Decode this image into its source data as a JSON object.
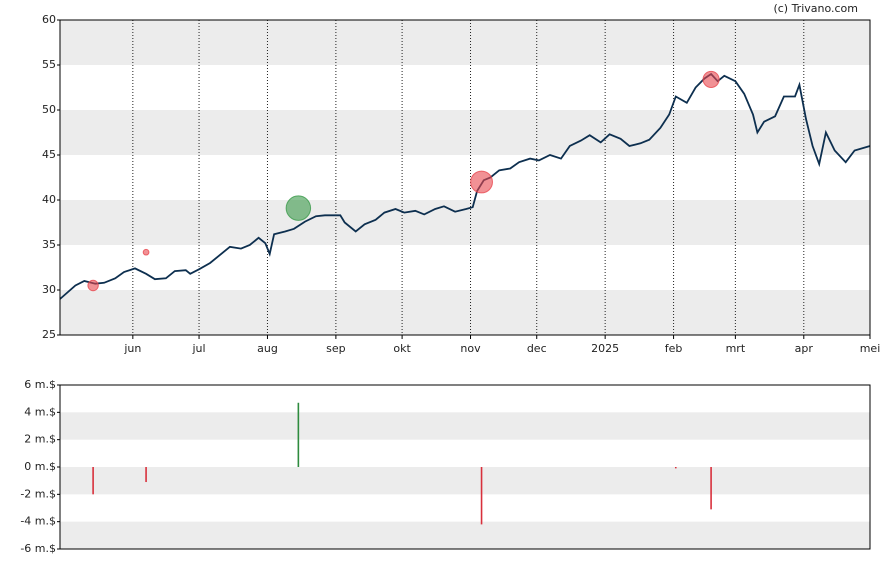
{
  "chart_data": [
    {
      "type": "line",
      "source": "(c) Trivano.com",
      "xlim": [
        0,
        367
      ],
      "xticks": [
        {
          "value": 33,
          "label": "jun"
        },
        {
          "value": 63,
          "label": "jul"
        },
        {
          "value": 94,
          "label": "aug"
        },
        {
          "value": 125,
          "label": "sep"
        },
        {
          "value": 155,
          "label": "okt"
        },
        {
          "value": 186,
          "label": "nov"
        },
        {
          "value": 216,
          "label": "dec"
        },
        {
          "value": 247,
          "label": "2025"
        },
        {
          "value": 278,
          "label": "feb"
        },
        {
          "value": 306,
          "label": "mrt"
        },
        {
          "value": 337,
          "label": "apr"
        },
        {
          "value": 367,
          "label": "mei"
        }
      ],
      "ylim": [
        25,
        60
      ],
      "yticks": [
        25,
        30,
        35,
        40,
        45,
        50,
        55,
        60
      ],
      "grid": "x",
      "line": {
        "color": "#0d2f4f",
        "x": [
          0,
          7,
          11,
          16,
          20,
          25,
          29,
          34,
          39,
          43,
          48,
          52,
          57,
          59,
          63,
          68,
          72,
          77,
          82,
          86,
          90,
          93,
          95,
          97,
          102,
          106,
          111,
          116,
          120,
          127,
          129,
          134,
          138,
          143,
          147,
          152,
          156,
          161,
          165,
          170,
          174,
          179,
          184,
          187,
          189,
          192,
          195,
          199,
          204,
          208,
          213,
          217,
          222,
          227,
          231,
          236,
          240,
          245,
          249,
          254,
          258,
          263,
          267,
          272,
          276,
          279,
          284,
          288,
          292,
          295,
          298,
          301,
          306,
          310,
          314,
          316,
          319,
          324,
          328,
          333,
          335,
          338,
          341,
          344,
          347,
          351,
          356,
          360,
          367
        ],
        "values": [
          29,
          30.5,
          31,
          30.7,
          30.8,
          31.3,
          32,
          32.4,
          31.8,
          31.2,
          31.3,
          32.1,
          32.2,
          31.8,
          32.3,
          33,
          33.8,
          34.8,
          34.6,
          35,
          35.8,
          35.2,
          34,
          36.2,
          36.5,
          36.8,
          37.6,
          38.2,
          38.3,
          38.3,
          37.5,
          36.5,
          37.3,
          37.8,
          38.6,
          39,
          38.6,
          38.8,
          38.4,
          39,
          39.3,
          38.7,
          39,
          39.2,
          41,
          42.2,
          42.5,
          43.3,
          43.5,
          44.2,
          44.6,
          44.4,
          45,
          44.6,
          46,
          46.6,
          47.2,
          46.4,
          47.3,
          46.8,
          46,
          46.3,
          46.7,
          48,
          49.5,
          51.5,
          50.8,
          52.5,
          53.5,
          54,
          53.2,
          53.8,
          53.2,
          51.8,
          49.5,
          47.5,
          48.7,
          49.3,
          51.5,
          51.5,
          52.8,
          49,
          46,
          44,
          47.5,
          45.5,
          44.2,
          45.5,
          46
        ]
      },
      "bubbles": {
        "x": [
          15,
          39,
          108,
          191,
          295
        ],
        "values": [
          30.5,
          34.2,
          39.1,
          42,
          53.4
        ],
        "sizes": [
          2,
          1.1,
          4.7,
          4.2,
          3.1
        ],
        "colors": [
          "#e8474f",
          "#e8474f",
          "#3a9a4a",
          "#e8474f",
          "#e8474f"
        ]
      }
    },
    {
      "type": "bar",
      "xlim": [
        0,
        367
      ],
      "ylim": [
        -6,
        6
      ],
      "yticks": [
        {
          "value": -6,
          "label": "-6 m.$"
        },
        {
          "value": -4,
          "label": "-4 m.$"
        },
        {
          "value": -2,
          "label": "-2 m.$"
        },
        {
          "value": 0,
          "label": "0 m.$"
        },
        {
          "value": 2,
          "label": "2 m.$"
        },
        {
          "value": 4,
          "label": "4 m.$"
        },
        {
          "value": 6,
          "label": "6 m.$"
        }
      ],
      "x": [
        15,
        39,
        108,
        191,
        279,
        295
      ],
      "values": [
        -2,
        -1.1,
        4.7,
        -4.2,
        -0.1,
        -3.1
      ],
      "colors": [
        "#d8303c",
        "#d8303c",
        "#2e8b3e",
        "#d8303c",
        "#d8303c",
        "#d8303c"
      ]
    }
  ]
}
